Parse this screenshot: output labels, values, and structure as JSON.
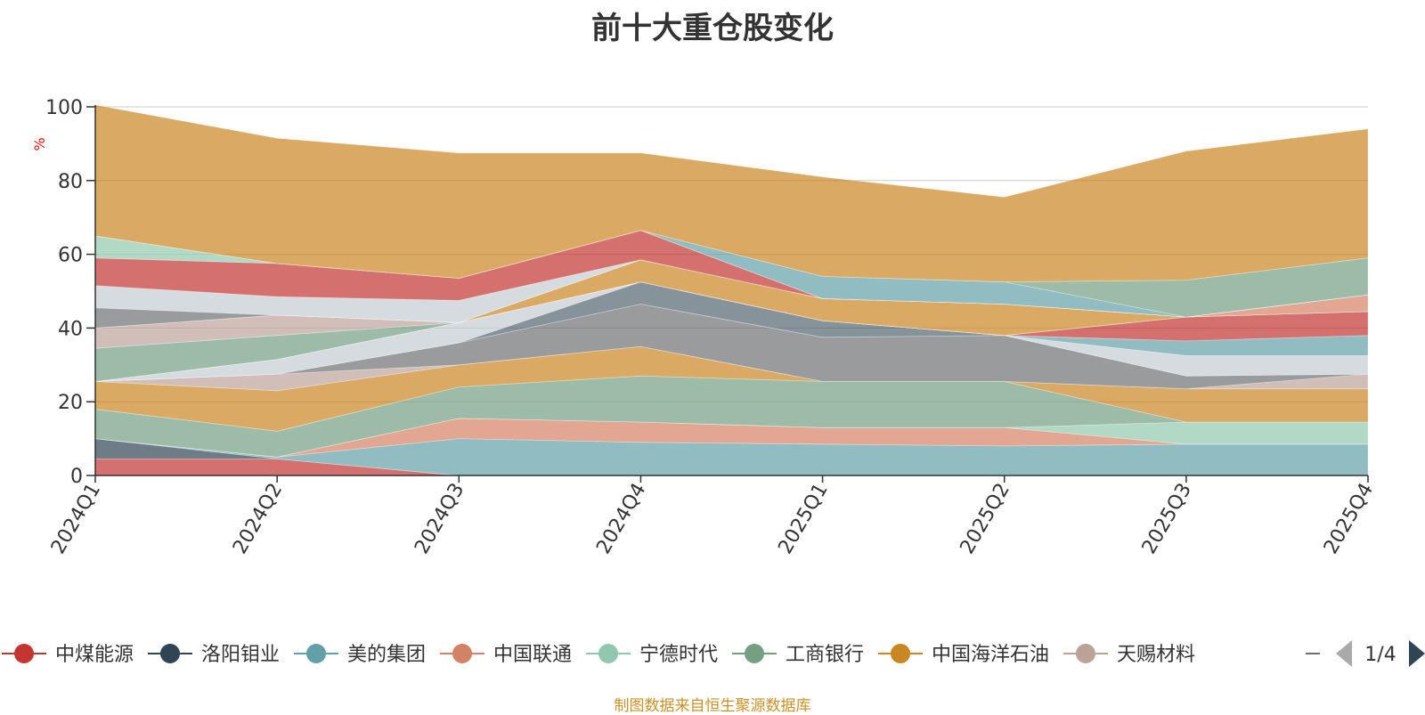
{
  "source_note": "制图数据来自恒生聚源数据库",
  "legend_pager": "1/4",
  "chart_data": {
    "type": "area",
    "stacked": true,
    "title": "前十大重仓股变化",
    "ylabel": "%",
    "xlabel": "",
    "ylim": [
      0,
      100
    ],
    "yticks": [
      0,
      20,
      40,
      60,
      80,
      100
    ],
    "grid": true,
    "legend_position": "bottom",
    "categories": [
      "2024Q1",
      "2024Q2",
      "2024Q3",
      "2024Q4",
      "2025Q1",
      "2025Q2",
      "2025Q3",
      "2025Q4"
    ],
    "series": [
      {
        "name": "中煤能源",
        "legend": true,
        "color": "#c23531",
        "values": [
          4.5,
          4.5,
          0,
          0,
          0,
          0,
          0,
          0
        ]
      },
      {
        "name": "洛阳钼业",
        "legend": true,
        "color": "#2f4554",
        "values": [
          5.5,
          0,
          0,
          0,
          0,
          0,
          0,
          0
        ]
      },
      {
        "name": "美的集团",
        "legend": true,
        "color": "#61a0a8",
        "values": [
          0,
          0.5,
          10,
          9,
          8.5,
          8,
          8.5,
          8.5
        ]
      },
      {
        "name": "中国联通",
        "legend": true,
        "color": "#d48265",
        "values": [
          0,
          0,
          5.5,
          5.5,
          4.5,
          5,
          0,
          0
        ]
      },
      {
        "name": "宁德时代",
        "legend": true,
        "color": "#91c7ae",
        "values": [
          0,
          0,
          0,
          0,
          0,
          0,
          6,
          6
        ]
      },
      {
        "name": "工商银行",
        "legend": true,
        "color": "#749f83",
        "values": [
          8,
          7,
          8.5,
          12.5,
          12.5,
          12.5,
          0,
          0
        ]
      },
      {
        "name": "中国海洋石油",
        "legend": true,
        "color": "#ca8622",
        "values": [
          7.5,
          11,
          6,
          8,
          0,
          0,
          9,
          9
        ]
      },
      {
        "name": "天赐材料",
        "legend": true,
        "color": "#bda29a",
        "values": [
          0,
          4.5,
          0,
          0,
          0,
          0,
          0,
          4
        ]
      },
      {
        "name": "",
        "legend": false,
        "color": "#6e7074",
        "values": [
          0,
          0,
          6,
          11.5,
          12,
          12.5,
          3.5,
          0
        ]
      },
      {
        "name": "",
        "legend": false,
        "color": "#546570",
        "values": [
          0,
          0,
          0,
          6,
          4.5,
          0,
          0,
          0
        ]
      },
      {
        "name": "",
        "legend": false,
        "color": "#c4ccd3",
        "values": [
          0,
          4,
          5.5,
          0,
          0,
          0,
          5.5,
          5
        ]
      },
      {
        "name": "",
        "legend": false,
        "color": "#61a0a8",
        "values": [
          0,
          0,
          0,
          0,
          0,
          0,
          4,
          5.5
        ]
      },
      {
        "name": "",
        "legend": false,
        "color": "#c23531",
        "values": [
          0,
          0,
          0,
          0,
          0,
          0,
          6.5,
          6.5
        ]
      },
      {
        "name": "",
        "legend": false,
        "color": "#749f83",
        "values": [
          9,
          6.5,
          0,
          0,
          0,
          0,
          0,
          0
        ]
      },
      {
        "name": "",
        "legend": false,
        "color": "#bda29a",
        "values": [
          5.5,
          5.5,
          0,
          0,
          0,
          0,
          0,
          0
        ]
      },
      {
        "name": "",
        "legend": false,
        "color": "#ca8622",
        "values": [
          0,
          0,
          0,
          6,
          6,
          8.5,
          0,
          0
        ]
      },
      {
        "name": "",
        "legend": false,
        "color": "#d48265",
        "values": [
          0,
          0,
          0,
          0,
          0,
          0,
          0,
          4.5
        ]
      },
      {
        "name": "",
        "legend": false,
        "color": "#6e7074",
        "values": [
          5.5,
          0,
          0,
          0,
          0,
          0,
          0,
          0
        ]
      },
      {
        "name": "",
        "legend": false,
        "color": "#c4ccd3",
        "values": [
          6,
          5,
          6,
          0,
          0,
          0,
          0,
          0
        ]
      },
      {
        "name": "",
        "legend": false,
        "color": "#c23531",
        "values": [
          7.5,
          9,
          6,
          8,
          0,
          0,
          0,
          0
        ]
      },
      {
        "name": "",
        "legend": false,
        "color": "#91c7ae",
        "values": [
          6,
          0,
          0,
          0,
          0,
          0,
          0,
          0
        ]
      },
      {
        "name": "",
        "legend": false,
        "color": "#61a0a8",
        "values": [
          0,
          0,
          0,
          0,
          6,
          6,
          0,
          0
        ]
      },
      {
        "name": "",
        "legend": false,
        "color": "#749f83",
        "values": [
          0,
          0,
          0,
          0,
          0,
          0,
          10,
          10
        ]
      },
      {
        "name": "",
        "legend": false,
        "color": "#ca8622",
        "values": [
          35.5,
          34,
          34,
          21,
          27,
          23,
          35,
          35
        ]
      }
    ]
  }
}
